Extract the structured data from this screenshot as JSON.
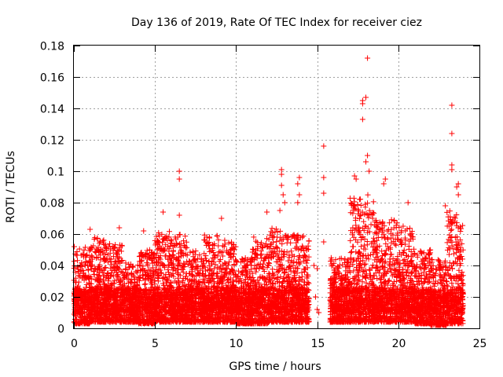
{
  "chart_data": {
    "type": "scatter",
    "title": "Day 136 of 2019, Rate Of TEC Index for receiver ciez",
    "xlabel": "GPS time / hours",
    "ylabel": "ROTI / TECUs",
    "xlim": [
      0,
      25
    ],
    "ylim": [
      0,
      0.18
    ],
    "xticks": [
      0,
      5,
      10,
      15,
      20,
      25
    ],
    "xtick_labels": [
      "0",
      "5",
      "10",
      "15",
      "20",
      "25"
    ],
    "yticks": [
      0,
      0.02,
      0.04,
      0.06,
      0.08,
      0.1,
      0.12,
      0.14,
      0.16,
      0.18
    ],
    "ytick_labels": [
      "0",
      "0.02",
      "0.04",
      "0.06",
      "0.08",
      "0.1",
      "0.12",
      "0.14",
      "0.16",
      "0.18"
    ],
    "grid": true,
    "marker": "+",
    "color": "#ff0000",
    "series": [
      {
        "name": "ROTI",
        "outliers": [
          {
            "x": 6.5,
            "y": 0.1
          },
          {
            "x": 6.5,
            "y": 0.095
          },
          {
            "x": 6.5,
            "y": 0.072
          },
          {
            "x": 12.8,
            "y": 0.101
          },
          {
            "x": 12.8,
            "y": 0.098
          },
          {
            "x": 12.8,
            "y": 0.091
          },
          {
            "x": 12.9,
            "y": 0.085
          },
          {
            "x": 13.0,
            "y": 0.08
          },
          {
            "x": 12.7,
            "y": 0.075
          },
          {
            "x": 13.9,
            "y": 0.096
          },
          {
            "x": 13.8,
            "y": 0.092
          },
          {
            "x": 13.9,
            "y": 0.085
          },
          {
            "x": 13.8,
            "y": 0.08
          },
          {
            "x": 15.4,
            "y": 0.116
          },
          {
            "x": 15.4,
            "y": 0.096
          },
          {
            "x": 15.4,
            "y": 0.086
          },
          {
            "x": 15.4,
            "y": 0.055
          },
          {
            "x": 18.1,
            "y": 0.172
          },
          {
            "x": 18.0,
            "y": 0.147
          },
          {
            "x": 17.8,
            "y": 0.145
          },
          {
            "x": 17.8,
            "y": 0.143
          },
          {
            "x": 17.8,
            "y": 0.133
          },
          {
            "x": 18.1,
            "y": 0.11
          },
          {
            "x": 18.0,
            "y": 0.106
          },
          {
            "x": 17.3,
            "y": 0.097
          },
          {
            "x": 17.4,
            "y": 0.095
          },
          {
            "x": 18.2,
            "y": 0.1
          },
          {
            "x": 19.2,
            "y": 0.095
          },
          {
            "x": 19.1,
            "y": 0.092
          },
          {
            "x": 23.3,
            "y": 0.142
          },
          {
            "x": 23.3,
            "y": 0.124
          },
          {
            "x": 23.3,
            "y": 0.104
          },
          {
            "x": 23.3,
            "y": 0.101
          },
          {
            "x": 23.7,
            "y": 0.092
          },
          {
            "x": 23.6,
            "y": 0.09
          },
          {
            "x": 23.7,
            "y": 0.085
          },
          {
            "x": 20.6,
            "y": 0.08
          },
          {
            "x": 22.9,
            "y": 0.078
          },
          {
            "x": 11.9,
            "y": 0.074
          },
          {
            "x": 5.5,
            "y": 0.074
          },
          {
            "x": 9.1,
            "y": 0.07
          },
          {
            "x": 2.8,
            "y": 0.064
          },
          {
            "x": 1.0,
            "y": 0.063
          },
          {
            "x": 4.3,
            "y": 0.062
          },
          {
            "x": 14.8,
            "y": 0.04
          },
          {
            "x": 15.0,
            "y": 0.038
          },
          {
            "x": 14.9,
            "y": 0.02
          },
          {
            "x": 15.0,
            "y": 0.012
          },
          {
            "x": 15.1,
            "y": 0.01
          }
        ],
        "envelope": [
          {
            "x0": 0.0,
            "x1": 1.0,
            "ymin": 0.003,
            "ymax": 0.052
          },
          {
            "x0": 1.0,
            "x1": 2.0,
            "ymin": 0.004,
            "ymax": 0.058
          },
          {
            "x0": 2.0,
            "x1": 3.0,
            "ymin": 0.004,
            "ymax": 0.054
          },
          {
            "x0": 3.0,
            "x1": 4.0,
            "ymin": 0.004,
            "ymax": 0.042
          },
          {
            "x0": 4.0,
            "x1": 5.0,
            "ymin": 0.003,
            "ymax": 0.05
          },
          {
            "x0": 5.0,
            "x1": 6.0,
            "ymin": 0.004,
            "ymax": 0.062
          },
          {
            "x0": 6.0,
            "x1": 7.0,
            "ymin": 0.004,
            "ymax": 0.06
          },
          {
            "x0": 7.0,
            "x1": 8.0,
            "ymin": 0.004,
            "ymax": 0.05
          },
          {
            "x0": 8.0,
            "x1": 9.0,
            "ymin": 0.004,
            "ymax": 0.06
          },
          {
            "x0": 9.0,
            "x1": 10.0,
            "ymin": 0.004,
            "ymax": 0.056
          },
          {
            "x0": 10.0,
            "x1": 11.0,
            "ymin": 0.003,
            "ymax": 0.045
          },
          {
            "x0": 11.0,
            "x1": 12.0,
            "ymin": 0.003,
            "ymax": 0.06
          },
          {
            "x0": 12.0,
            "x1": 13.0,
            "ymin": 0.004,
            "ymax": 0.065
          },
          {
            "x0": 13.0,
            "x1": 14.5,
            "ymin": 0.004,
            "ymax": 0.06
          },
          {
            "x0": 15.8,
            "x1": 17.0,
            "ymin": 0.004,
            "ymax": 0.045
          },
          {
            "x0": 17.0,
            "x1": 18.5,
            "ymin": 0.004,
            "ymax": 0.085
          },
          {
            "x0": 18.5,
            "x1": 20.0,
            "ymin": 0.004,
            "ymax": 0.07
          },
          {
            "x0": 20.0,
            "x1": 21.0,
            "ymin": 0.004,
            "ymax": 0.065
          },
          {
            "x0": 21.0,
            "x1": 22.0,
            "ymin": 0.003,
            "ymax": 0.05
          },
          {
            "x0": 22.0,
            "x1": 23.0,
            "ymin": 0.002,
            "ymax": 0.045
          },
          {
            "x0": 23.0,
            "x1": 24.0,
            "ymin": 0.003,
            "ymax": 0.075
          }
        ]
      }
    ]
  }
}
